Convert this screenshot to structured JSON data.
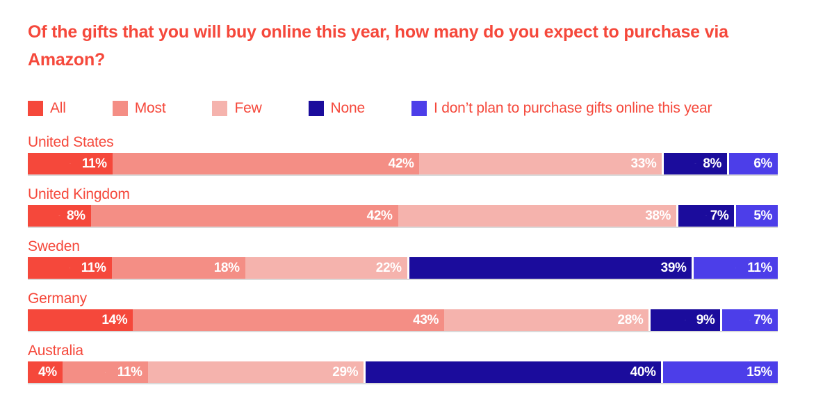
{
  "title": "Of the gifts that you will buy online this year, how many do you expect to purchase via Amazon?",
  "colors": {
    "accent_text": "#F5483B",
    "background": "#FFFFFF",
    "separator": "#FFFFFF",
    "all": "#F5483B",
    "most": "#F48E85",
    "few": "#F5B3AD",
    "none": "#1B0C9C",
    "no_online": "#4C3EE9"
  },
  "chart_data": {
    "type": "bar",
    "variant": "horizontal-stacked-100",
    "title": "Of the gifts that you will buy online this year, how many do you expect to purchase via Amazon?",
    "value_suffix": "%",
    "legend_position": "top",
    "categories": [
      "United States",
      "United Kingdom",
      "Sweden",
      "Germany",
      "Australia"
    ],
    "series": [
      {
        "name": "All",
        "color": "#F5483B",
        "values": [
          11,
          8,
          11,
          14,
          4
        ]
      },
      {
        "name": "Most",
        "color": "#F48E85",
        "values": [
          42,
          42,
          18,
          43,
          11
        ]
      },
      {
        "name": "Few",
        "color": "#F5B3AD",
        "values": [
          33,
          38,
          22,
          28,
          29
        ]
      },
      {
        "name": "None",
        "color": "#1B0C9C",
        "values": [
          8,
          7,
          39,
          9,
          40
        ]
      },
      {
        "name": "I don’t plan to purchase gifts online this year",
        "color": "#4C3EE9",
        "values": [
          6,
          5,
          11,
          7,
          15
        ]
      }
    ]
  }
}
